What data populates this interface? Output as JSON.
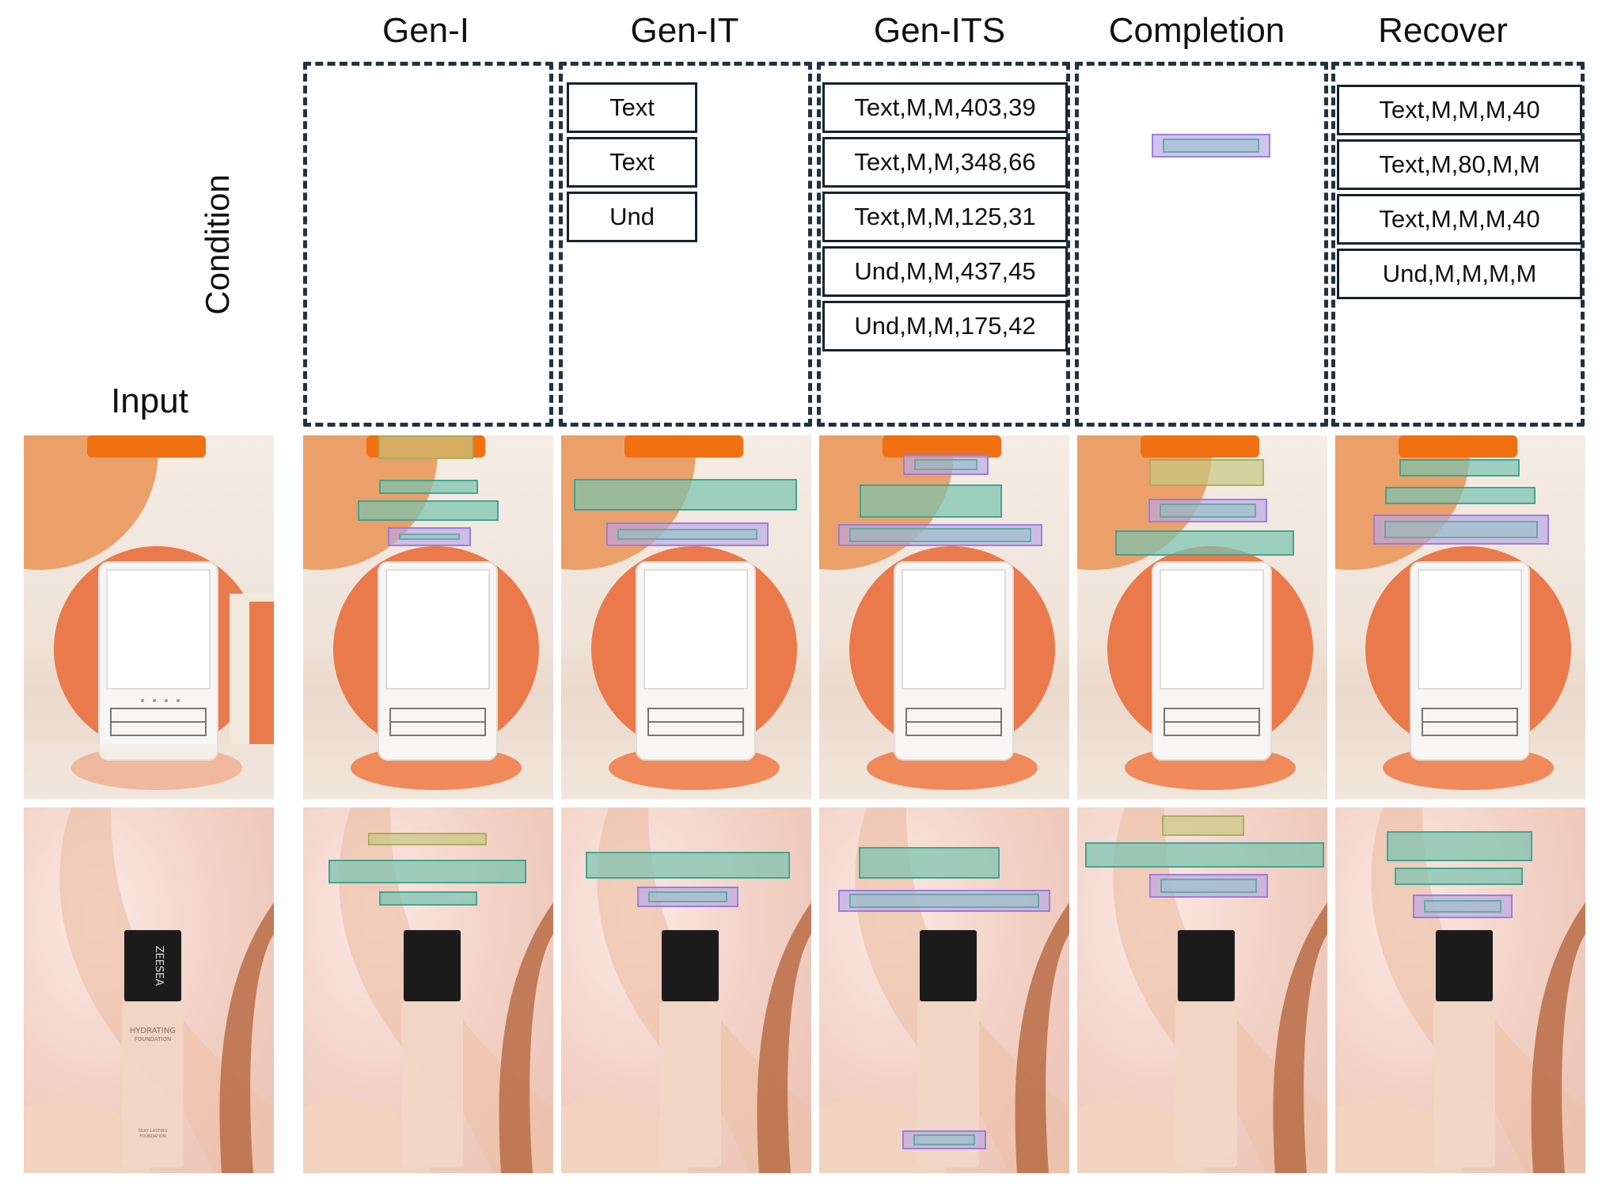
{
  "columns": {
    "gen_i": "Gen-I",
    "gen_it": "Gen-IT",
    "gen_its": "Gen-ITS",
    "completion": "Completion",
    "recover": "Recover"
  },
  "input_label": "Input",
  "condition_label": "Condition",
  "conditions": {
    "gen_it": [
      "Text",
      "Text",
      "Und"
    ],
    "gen_its": [
      "Text,M,M,403,39",
      "Text,M,M,348,66",
      "Text,M,M,125,31",
      "Und,M,M,437,45",
      "Und,M,M,175,42"
    ],
    "recover": [
      "Text,M,M,M,40",
      "Text,M,80,M,M",
      "Text,M,M,M,40",
      "Und,M,M,M,M"
    ]
  },
  "product": {
    "brand": "ZEESEA",
    "name_line1": "HYDRATING",
    "name_line2": "FOUNDATION",
    "tag_line1": "SILKY LASTING",
    "tag_line2": "FOUNDATION"
  },
  "colors": {
    "text_box": "#78c3af",
    "underlay_box": "#b9a5e6",
    "decoration_box": "#c8c882",
    "panel_border": "#1f3340"
  }
}
